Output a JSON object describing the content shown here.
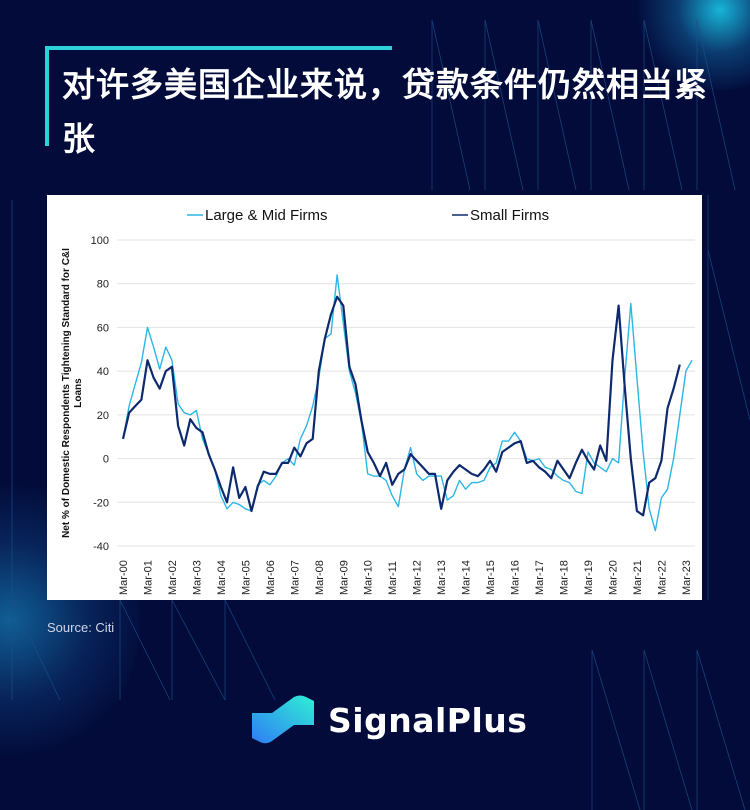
{
  "header": {
    "title": "对许多美国企业来说，贷款条件仍然相当紧张"
  },
  "footer": {
    "source": "Source: Citi",
    "brand": "SignalPlus"
  },
  "colors": {
    "background": "#020b3a",
    "accent": "#2ed1d8",
    "large_mid_line": "#2cb6e6",
    "small_line": "#0e2a6e"
  },
  "chart_data": {
    "type": "line",
    "title": "",
    "xlabel": "",
    "ylabel": "Net % of Domestic Respondents Tightening Standard for C&I Loans",
    "ylim": [
      -40,
      100
    ],
    "yticks": [
      -40,
      -20,
      0,
      20,
      40,
      60,
      80,
      100
    ],
    "grid": "horizontal",
    "legend_position": "top",
    "x_tick_labels": [
      "Mar-00",
      "Mar-01",
      "Mar-02",
      "Mar-03",
      "Mar-04",
      "Mar-05",
      "Mar-06",
      "Mar-07",
      "Mar-08",
      "Mar-09",
      "Mar-10",
      "Mar-11",
      "Mar-12",
      "Mar-13",
      "Mar-14",
      "Mar-15",
      "Mar-16",
      "Mar-17",
      "Mar-18",
      "Mar-19",
      "Mar-20",
      "Mar-21",
      "Mar-22",
      "Mar-23"
    ],
    "x_frequency": "quarterly, Mar-00 to Mar-23",
    "series": [
      {
        "name": "Large & Mid Firms",
        "color": "#2cb6e6",
        "values": [
          9,
          24,
          34,
          44,
          60,
          51,
          41,
          51,
          45,
          25,
          21,
          20,
          22,
          9,
          2,
          -5,
          -17,
          -23,
          -20,
          -21,
          -23,
          -24,
          -12,
          -10,
          -12,
          -8,
          -2,
          0,
          -3,
          9,
          15,
          24,
          37,
          55,
          57,
          84,
          62,
          40,
          30,
          16,
          -7,
          -8,
          -8,
          -10,
          -17,
          -22,
          -5,
          5,
          -7,
          -10,
          -8,
          -8,
          -8,
          -19,
          -17,
          -10,
          -14,
          -11,
          -11,
          -10,
          -4,
          -2,
          8,
          8,
          12,
          8,
          0,
          -1,
          0,
          -4,
          -5,
          -8,
          -10,
          -11,
          -15,
          -16,
          3,
          -2,
          -4,
          -6,
          0,
          -2,
          37,
          71,
          37,
          3,
          -23,
          -33,
          -18,
          -14,
          0,
          20,
          40,
          45
        ]
      },
      {
        "name": "Small Firms",
        "color": "#0e2a6e",
        "values": [
          9,
          21,
          24,
          27,
          45,
          37,
          32,
          40,
          42,
          15,
          6,
          18,
          14,
          12,
          2,
          -5,
          -13,
          -20,
          -4,
          -18,
          -13,
          -24,
          -13,
          -6,
          -7,
          -7,
          -2,
          -2,
          5,
          1,
          7,
          9,
          40,
          55,
          66,
          74,
          70,
          42,
          34,
          17,
          3,
          -2,
          -8,
          -2,
          -12,
          -7,
          -5,
          2,
          -1,
          -4,
          -7,
          -7,
          -23,
          -10,
          -6,
          -3,
          -5,
          -7,
          -8,
          -5,
          -1,
          -6,
          3,
          5,
          7,
          8,
          -2,
          -1,
          -4,
          -6,
          -9,
          -1,
          -5,
          -9,
          -2,
          4,
          -1,
          -5,
          6,
          -1,
          45,
          70,
          33,
          0,
          -24,
          -26,
          -11,
          -9,
          -1,
          23,
          32,
          43
        ]
      }
    ]
  }
}
